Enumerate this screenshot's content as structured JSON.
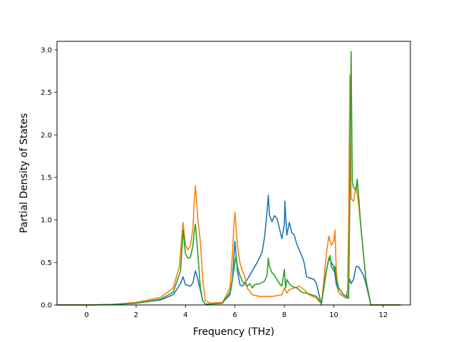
{
  "chart_data": {
    "type": "line",
    "title": "",
    "xlabel": "Frequency (THz)",
    "ylabel": "Partial Density of States",
    "xlim": [
      -1.2,
      13.1
    ],
    "ylim": [
      0,
      3.1
    ],
    "xticks": [
      0,
      2,
      4,
      6,
      8,
      10,
      12
    ],
    "xtick_labels": [
      "0",
      "2",
      "4",
      "6",
      "8",
      "10",
      "12"
    ],
    "yticks": [
      0.0,
      0.5,
      1.0,
      1.5,
      2.0,
      2.5,
      3.0
    ],
    "ytick_labels": [
      "0.0",
      "0.5",
      "1.0",
      "1.5",
      "2.0",
      "2.5",
      "3.0"
    ],
    "grid": false,
    "legend": "none",
    "series": [
      {
        "color": "#1f77b4",
        "x": [
          -1.2,
          0.0,
          1.0,
          2.0,
          3.0,
          3.5,
          3.8,
          3.9,
          4.0,
          4.2,
          4.3,
          4.4,
          4.5,
          4.7,
          4.8,
          5.0,
          5.5,
          5.8,
          5.9,
          6.0,
          6.1,
          6.2,
          6.3,
          6.5,
          6.7,
          6.9,
          7.1,
          7.2,
          7.3,
          7.35,
          7.4,
          7.5,
          7.6,
          7.7,
          7.8,
          7.9,
          8.0,
          8.02,
          8.1,
          8.2,
          8.3,
          8.4,
          8.5,
          8.6,
          8.7,
          8.8,
          8.9,
          9.0,
          9.2,
          9.3,
          9.5,
          9.6,
          9.7,
          9.8,
          9.9,
          10.0,
          10.1,
          10.2,
          10.3,
          10.5,
          10.6,
          10.65,
          10.7,
          10.8,
          10.9,
          11.0,
          11.1,
          11.2,
          11.3,
          11.5,
          11.8,
          12.7
        ],
        "y": [
          0.0,
          0.0,
          0.005,
          0.02,
          0.06,
          0.12,
          0.25,
          0.33,
          0.24,
          0.22,
          0.26,
          0.4,
          0.3,
          0.05,
          0.01,
          0.01,
          0.03,
          0.12,
          0.3,
          0.75,
          0.4,
          0.24,
          0.22,
          0.3,
          0.4,
          0.5,
          0.62,
          0.8,
          1.1,
          1.29,
          1.05,
          0.98,
          1.05,
          1.02,
          0.9,
          0.78,
          0.95,
          1.22,
          0.82,
          0.97,
          0.85,
          0.82,
          0.72,
          0.65,
          0.58,
          0.5,
          0.33,
          0.32,
          0.3,
          0.25,
          0.0,
          0.25,
          0.4,
          0.55,
          0.5,
          0.45,
          0.25,
          0.15,
          0.12,
          0.08,
          0.25,
          0.3,
          0.25,
          0.3,
          0.45,
          0.45,
          0.4,
          0.35,
          0.25,
          0.0,
          0.0,
          0.0
        ]
      },
      {
        "color": "#ff7f0e",
        "x": [
          -1.2,
          0.0,
          1.0,
          2.0,
          3.0,
          3.5,
          3.75,
          3.85,
          3.9,
          4.0,
          4.1,
          4.2,
          4.3,
          4.35,
          4.4,
          4.5,
          4.6,
          4.7,
          4.8,
          5.0,
          5.5,
          5.8,
          5.9,
          5.95,
          6.0,
          6.1,
          6.2,
          6.3,
          6.4,
          6.5,
          6.7,
          7.0,
          7.5,
          7.9,
          8.0,
          8.1,
          8.2,
          8.4,
          8.6,
          8.8,
          9.0,
          9.3,
          9.5,
          9.6,
          9.7,
          9.8,
          9.85,
          9.9,
          10.0,
          10.05,
          10.1,
          10.2,
          10.4,
          10.55,
          10.6,
          10.65,
          10.7,
          10.8,
          10.9,
          11.0,
          11.1,
          11.2,
          11.3,
          11.5,
          11.8,
          12.7
        ],
        "y": [
          0.0,
          0.0,
          0.005,
          0.03,
          0.09,
          0.2,
          0.45,
          0.8,
          0.97,
          0.7,
          0.65,
          0.7,
          0.9,
          1.2,
          1.4,
          1.0,
          0.75,
          0.3,
          0.05,
          0.02,
          0.03,
          0.2,
          0.6,
          0.9,
          1.09,
          0.7,
          0.5,
          0.4,
          0.33,
          0.2,
          0.12,
          0.1,
          0.1,
          0.12,
          0.2,
          0.14,
          0.18,
          0.2,
          0.22,
          0.18,
          0.12,
          0.08,
          0.01,
          0.3,
          0.6,
          0.81,
          0.75,
          0.7,
          0.75,
          0.88,
          0.4,
          0.15,
          0.1,
          0.08,
          0.9,
          2.7,
          1.25,
          1.22,
          1.4,
          1.2,
          0.9,
          0.6,
          0.3,
          0.0,
          0.0,
          0.0
        ]
      },
      {
        "color": "#2ca02c",
        "x": [
          -1.2,
          0.0,
          1.0,
          2.0,
          3.0,
          3.5,
          3.8,
          3.9,
          4.0,
          4.1,
          4.2,
          4.3,
          4.35,
          4.4,
          4.5,
          4.6,
          4.7,
          4.8,
          5.0,
          5.5,
          5.8,
          5.9,
          6.0,
          6.05,
          6.1,
          6.2,
          6.3,
          6.5,
          6.6,
          6.7,
          6.8,
          7.0,
          7.2,
          7.3,
          7.35,
          7.4,
          7.5,
          7.6,
          7.8,
          7.9,
          8.0,
          8.05,
          8.1,
          8.2,
          8.3,
          8.5,
          8.7,
          9.0,
          9.3,
          9.5,
          9.6,
          9.7,
          9.8,
          9.85,
          9.9,
          10.0,
          10.05,
          10.1,
          10.2,
          10.4,
          10.6,
          10.65,
          10.7,
          10.75,
          10.8,
          10.9,
          10.95,
          11.0,
          11.1,
          11.2,
          11.3,
          11.5,
          11.8,
          12.7
        ],
        "y": [
          0.0,
          0.0,
          0.005,
          0.02,
          0.07,
          0.15,
          0.4,
          0.88,
          0.6,
          0.55,
          0.56,
          0.7,
          0.85,
          0.95,
          0.6,
          0.2,
          0.05,
          0.01,
          0.01,
          0.02,
          0.15,
          0.3,
          0.5,
          0.58,
          0.45,
          0.35,
          0.28,
          0.22,
          0.25,
          0.2,
          0.24,
          0.25,
          0.28,
          0.35,
          0.55,
          0.45,
          0.38,
          0.35,
          0.25,
          0.22,
          0.42,
          0.2,
          0.3,
          0.25,
          0.22,
          0.2,
          0.15,
          0.13,
          0.1,
          0.02,
          0.2,
          0.4,
          0.55,
          0.58,
          0.45,
          0.4,
          0.45,
          0.3,
          0.2,
          0.12,
          0.08,
          1.3,
          2.98,
          1.45,
          1.38,
          1.35,
          1.48,
          1.3,
          0.9,
          0.6,
          0.3,
          0.0,
          0.0,
          0.0
        ]
      }
    ]
  }
}
